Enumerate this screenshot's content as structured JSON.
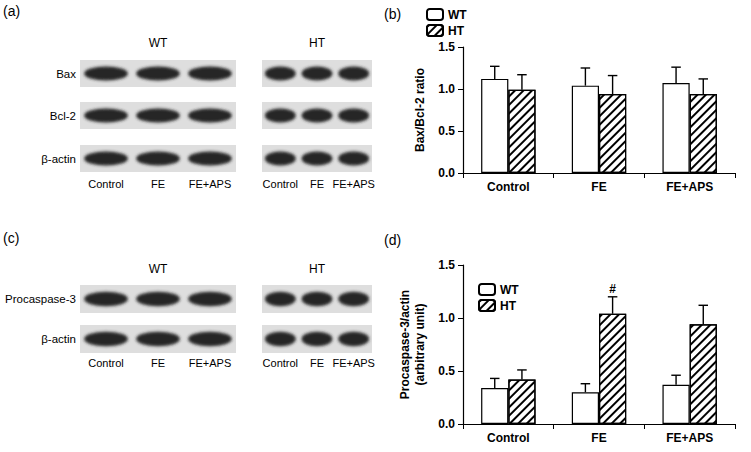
{
  "blots": [
    {
      "panel": "(a)",
      "rows": [
        "Bax",
        "Bcl-2",
        "β-actin"
      ],
      "groups": [
        {
          "label": "WT",
          "lanes": [
            "Control",
            "FE",
            "FE+APS"
          ]
        },
        {
          "label": "HT",
          "lanes": [
            "Control",
            "FE",
            "FE+APS"
          ]
        }
      ]
    },
    {
      "panel": "(c)",
      "rows": [
        "Procaspase-3",
        "β-actin"
      ],
      "groups": [
        {
          "label": "WT",
          "lanes": [
            "Control",
            "FE",
            "FE+APS"
          ]
        },
        {
          "label": "HT",
          "lanes": [
            "Control",
            "FE",
            "FE+APS"
          ]
        }
      ]
    }
  ],
  "chart_data": [
    {
      "type": "bar",
      "title": "(b)",
      "categories": [
        "Control",
        "FE",
        "FE+APS"
      ],
      "ylabel": "Bax/Bcl-2 ratio",
      "ylim": [
        0,
        1.5
      ],
      "yticks": [
        {
          "value": 0,
          "label": "0.0"
        },
        {
          "value": 0.5,
          "label": "0.5"
        },
        {
          "value": 1,
          "label": "1.0"
        },
        {
          "value": 1.5,
          "label": "1.5"
        }
      ],
      "grid": false,
      "legend": "upper left",
      "series": [
        {
          "name": "WT",
          "color": "#ffffff",
          "values": [
            1.12,
            1.04,
            1.07
          ],
          "errors": [
            0.15,
            0.21,
            0.19
          ]
        },
        {
          "name": "HT",
          "color": "#000000",
          "values": [
            0.99,
            0.94,
            0.94
          ],
          "errors": [
            0.18,
            0.22,
            0.18
          ]
        }
      ]
    },
    {
      "type": "bar",
      "title": "(d)",
      "categories": [
        "Control",
        "FE",
        "FE+APS"
      ],
      "ylabel": "Procaspase-3/actin\n(arbitrary unit)",
      "ylim": [
        0,
        1.5
      ],
      "yticks": [
        {
          "value": 0,
          "label": "0.0"
        },
        {
          "value": 0.5,
          "label": "0.5"
        },
        {
          "value": 1,
          "label": "1.0"
        },
        {
          "value": 1.5,
          "label": "1.5"
        }
      ],
      "grid": false,
      "legend": "upper left",
      "annotations": [
        {
          "text": "#",
          "series": "HT",
          "category": "FE"
        }
      ],
      "series": [
        {
          "name": "WT",
          "color": "#ffffff",
          "values": [
            0.34,
            0.3,
            0.37
          ],
          "errors": [
            0.09,
            0.08,
            0.09
          ]
        },
        {
          "name": "HT",
          "color": "#000000",
          "values": [
            0.42,
            1.04,
            0.94
          ],
          "errors": [
            0.09,
            0.16,
            0.18
          ]
        }
      ]
    }
  ]
}
